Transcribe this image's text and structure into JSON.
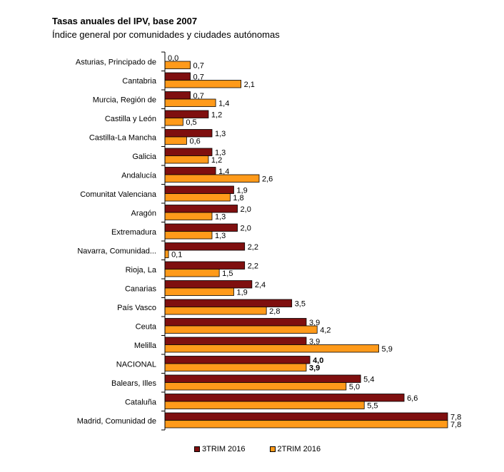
{
  "chart_data": {
    "type": "bar",
    "orientation": "horizontal",
    "title": "Tasas anuales del IPV, base 2007",
    "subtitle": "Índice general por comunidades y ciudades autónomas",
    "categories": [
      "Asturias, Principado de",
      "Cantabria",
      "Murcia, Región de",
      "Castilla y León",
      "Castilla-La Mancha",
      "Galicia",
      "Andalucía",
      "Comunitat Valenciana",
      "Aragón",
      "Extremadura",
      "Navarra, Comunidad...",
      "Rioja, La",
      "Canarias",
      "País Vasco",
      "Ceuta",
      "Melilla",
      "NACIONAL",
      "Balears, Illes",
      "Cataluña",
      "Madrid, Comunidad de"
    ],
    "series": [
      {
        "name": "3TRIM 2016",
        "color": "#7f0f0f",
        "values": [
          0.0,
          0.7,
          0.7,
          1.2,
          1.3,
          1.3,
          1.4,
          1.9,
          2.0,
          2.0,
          2.2,
          2.2,
          2.4,
          3.5,
          3.9,
          3.9,
          4.0,
          5.4,
          6.6,
          7.8
        ],
        "labels": [
          "0,0",
          "0,7",
          "0,7",
          "1,2",
          "1,3",
          "1,3",
          "1,4",
          "1,9",
          "2,0",
          "2,0",
          "2,2",
          "2,2",
          "2,4",
          "3,5",
          "3,9",
          "3,9",
          "4,0",
          "5,4",
          "6,6",
          "7,8"
        ]
      },
      {
        "name": "2TRIM 2016",
        "color": "#ff9a1a",
        "values": [
          0.7,
          2.1,
          1.4,
          0.5,
          0.6,
          1.2,
          2.6,
          1.8,
          1.3,
          1.3,
          0.1,
          1.5,
          1.9,
          2.8,
          4.2,
          5.9,
          3.9,
          5.0,
          5.5,
          7.8
        ],
        "labels": [
          "0,7",
          "2,1",
          "1,4",
          "0,5",
          "0,6",
          "1,2",
          "2,6",
          "1,8",
          "1,3",
          "1,3",
          "0,1",
          "1,5",
          "1,9",
          "2,8",
          "4,2",
          "5,9",
          "3,9",
          "5,0",
          "5,5",
          "7,8"
        ]
      }
    ],
    "bold_category": "NACIONAL",
    "xlim": [
      0,
      7.8
    ],
    "grid": false,
    "legend_position": "bottom"
  }
}
